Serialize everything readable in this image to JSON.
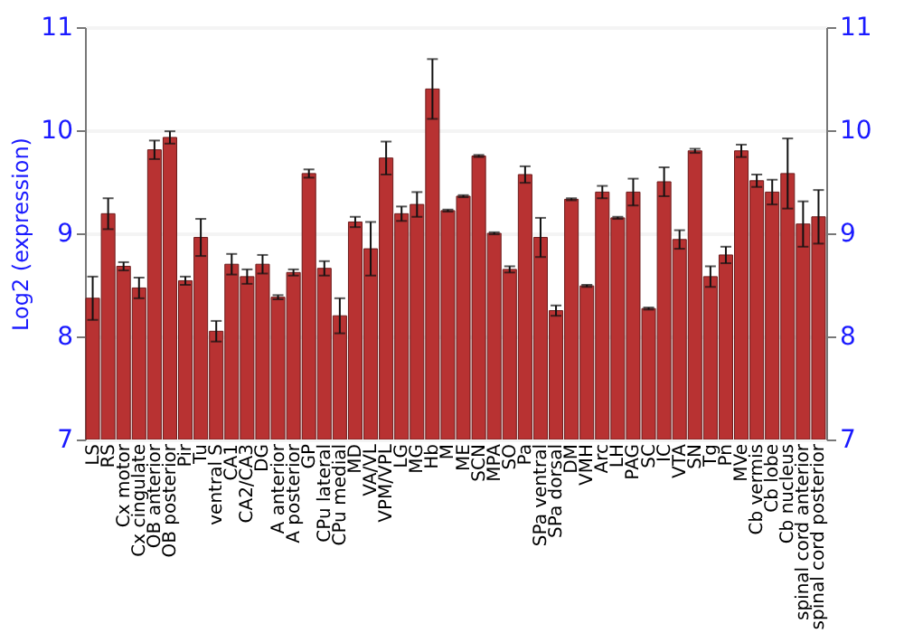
{
  "chart_data": {
    "type": "bar",
    "ylabel": "Log2 (expression)",
    "categories": [
      "LS",
      "RS",
      "Cx motor",
      "Cx cingulate",
      "OB anterior",
      "OB posterior",
      "Pir",
      "Tu",
      "ventral S",
      "CA1",
      "CA2/CA3",
      "DG",
      "A anterior",
      "A posterior",
      "GP",
      "CPu lateral",
      "CPu medial",
      "MD",
      "VA/VL",
      "VPM/VPL",
      "LG",
      "MG",
      "Hb",
      "M",
      "ME",
      "SCN",
      "MPA",
      "SO",
      "Pa",
      "SPa ventral",
      "SPa dorsal",
      "DM",
      "VMH",
      "Arc",
      "LH",
      "PAG",
      "SC",
      "IC",
      "VTA",
      "SN",
      "Tg",
      "Pn",
      "MVe",
      "Cb vermis",
      "Cb lobe",
      "Cb nucleus",
      "spinal cord anterior",
      "spinal cord posterior"
    ],
    "values": [
      8.37,
      9.19,
      8.68,
      8.47,
      9.81,
      9.93,
      8.54,
      8.96,
      8.05,
      8.7,
      8.58,
      8.7,
      8.38,
      8.62,
      9.58,
      8.66,
      8.2,
      9.11,
      8.85,
      9.73,
      9.19,
      9.28,
      10.4,
      9.22,
      9.36,
      9.75,
      9.0,
      8.65,
      9.57,
      8.96,
      8.25,
      9.33,
      8.49,
      9.4,
      9.15,
      9.4,
      8.27,
      9.5,
      8.94,
      9.8,
      8.58,
      8.79,
      9.8,
      9.51,
      9.4,
      9.58,
      9.09,
      9.16
    ],
    "errors": [
      0.21,
      0.15,
      0.04,
      0.1,
      0.09,
      0.06,
      0.04,
      0.18,
      0.1,
      0.1,
      0.07,
      0.09,
      0.02,
      0.03,
      0.04,
      0.07,
      0.17,
      0.05,
      0.26,
      0.16,
      0.07,
      0.12,
      0.29,
      0.01,
      0.01,
      0.01,
      0.01,
      0.03,
      0.08,
      0.19,
      0.05,
      0.01,
      0.01,
      0.06,
      0.01,
      0.13,
      0.01,
      0.14,
      0.09,
      0.02,
      0.1,
      0.08,
      0.06,
      0.06,
      0.12,
      0.34,
      0.22,
      0.26
    ],
    "color": "#b83232",
    "ylim": [
      7,
      11
    ],
    "yticks": [
      7,
      8,
      9,
      10,
      11
    ],
    "y2lim": [
      7,
      11
    ],
    "y2ticks": [
      7,
      8,
      9,
      10,
      11
    ],
    "grid": "y"
  }
}
